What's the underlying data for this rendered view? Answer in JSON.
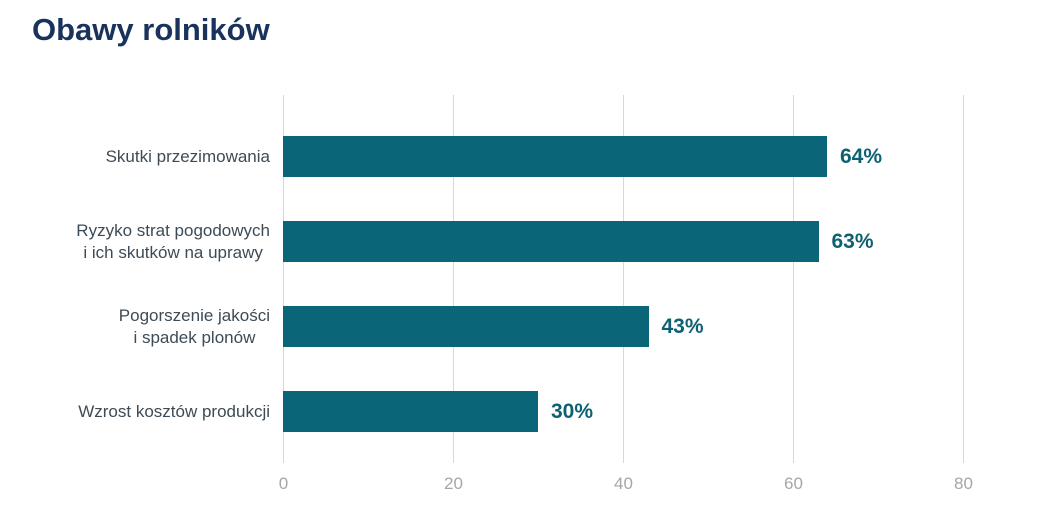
{
  "chart_data": {
    "type": "bar",
    "orientation": "horizontal",
    "title": "Obawy rolników",
    "categories": [
      "Skutki przezimowania",
      "Ryzyko strat pogodowych\ni ich skutków na uprawy",
      "Pogorszenie jakości\ni spadek plonów",
      "Wzrost kosztów produkcji"
    ],
    "values": [
      64,
      63,
      43,
      30
    ],
    "value_labels": [
      "64%",
      "63%",
      "43%",
      "30%"
    ],
    "xlabel": "",
    "ylabel": "",
    "xticks": [
      0,
      20,
      40,
      60,
      80
    ],
    "xlim": [
      0,
      80
    ],
    "grid": "vertical-gridlines-on",
    "legend": "none",
    "colors": {
      "bar": "#0a6578",
      "value_label": "#0d6173",
      "title": "#1a335c",
      "category_label": "#3d4b56",
      "axis_tick_label": "#a6a6a6",
      "gridline": "#d8d8d8",
      "background": "#ffffff"
    }
  }
}
